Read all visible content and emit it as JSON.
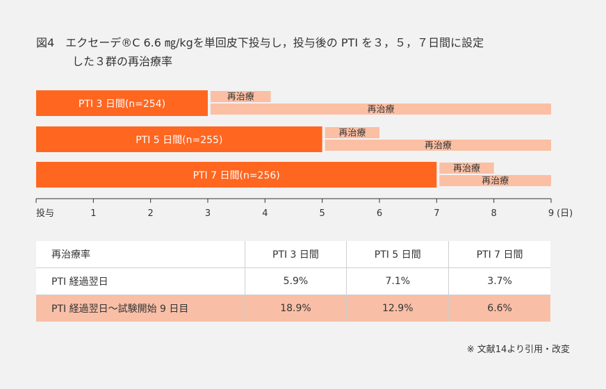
{
  "figure": {
    "label": "図4",
    "title_line1": "エクセーデ®C 6.6 ㎎/kgを単回皮下投与し，投与後の PTI を３，５，７日間に設定",
    "title_line2": "した３群の再治療率"
  },
  "chart_data": {
    "type": "bar",
    "orientation": "horizontal",
    "x_ticks": [
      "投与",
      "1",
      "2",
      "3",
      "4",
      "5",
      "6",
      "7",
      "8",
      "9"
    ],
    "x_unit": "(日)",
    "xlim": [
      0,
      9
    ],
    "groups": [
      {
        "name": "PTI 3 日間(n=254)",
        "pti_days": 3,
        "retreatment_bars": [
          {
            "label": "再治療",
            "start": 3,
            "end": 4.1
          },
          {
            "label": "再治療",
            "start": 3,
            "end": 9
          }
        ]
      },
      {
        "name": "PTI 5 日間(n=255)",
        "pti_days": 5,
        "retreatment_bars": [
          {
            "label": "再治療",
            "start": 5,
            "end": 6
          },
          {
            "label": "再治療",
            "start": 5,
            "end": 9
          }
        ]
      },
      {
        "name": "PTI 7 日間(n=256)",
        "pti_days": 7,
        "retreatment_bars": [
          {
            "label": "再治療",
            "start": 7,
            "end": 8
          },
          {
            "label": "再治療",
            "start": 7,
            "end": 9
          }
        ]
      }
    ],
    "colors": {
      "pti_bar": "#ff6620",
      "retreatment_bar": "#fbbfa4"
    }
  },
  "table": {
    "header": [
      "再治療率",
      "PTI 3 日間",
      "PTI 5 日間",
      "PTI 7 日間"
    ],
    "rows": [
      {
        "label": "PTI 経過翌日",
        "values": [
          "5.9%",
          "7.1%",
          "3.7%"
        ]
      },
      {
        "label": "PTI 経過翌日〜試験開始 9 日目",
        "values": [
          "18.9%",
          "12.9%",
          "6.6%"
        ]
      }
    ],
    "highlight_color": "#f8bfa6"
  },
  "footnote": "※ 文献14より引用・改変"
}
